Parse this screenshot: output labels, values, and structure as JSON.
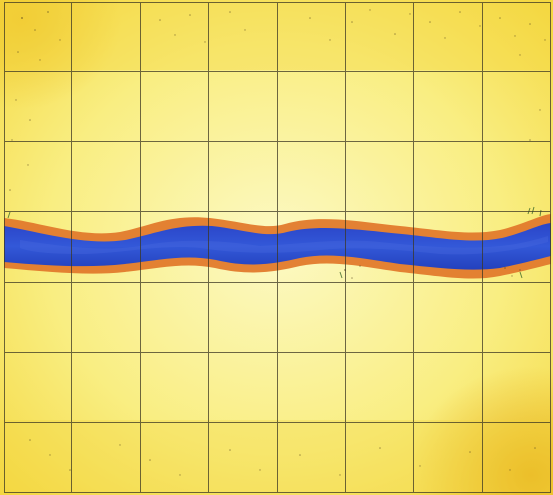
{
  "board": {
    "columns": 8,
    "rows": 7,
    "terrain": "sand",
    "feature": "river",
    "river_row": 3
  },
  "colors": {
    "sand_light": "#fbf7b4",
    "sand_mid": "#f8ec6e",
    "sand_dark": "#f2cf2a",
    "river_water": "#2f4fd0",
    "river_water_dark": "#1f35b0",
    "river_bank": "#e0782a",
    "grid_line": "#3c3723"
  }
}
